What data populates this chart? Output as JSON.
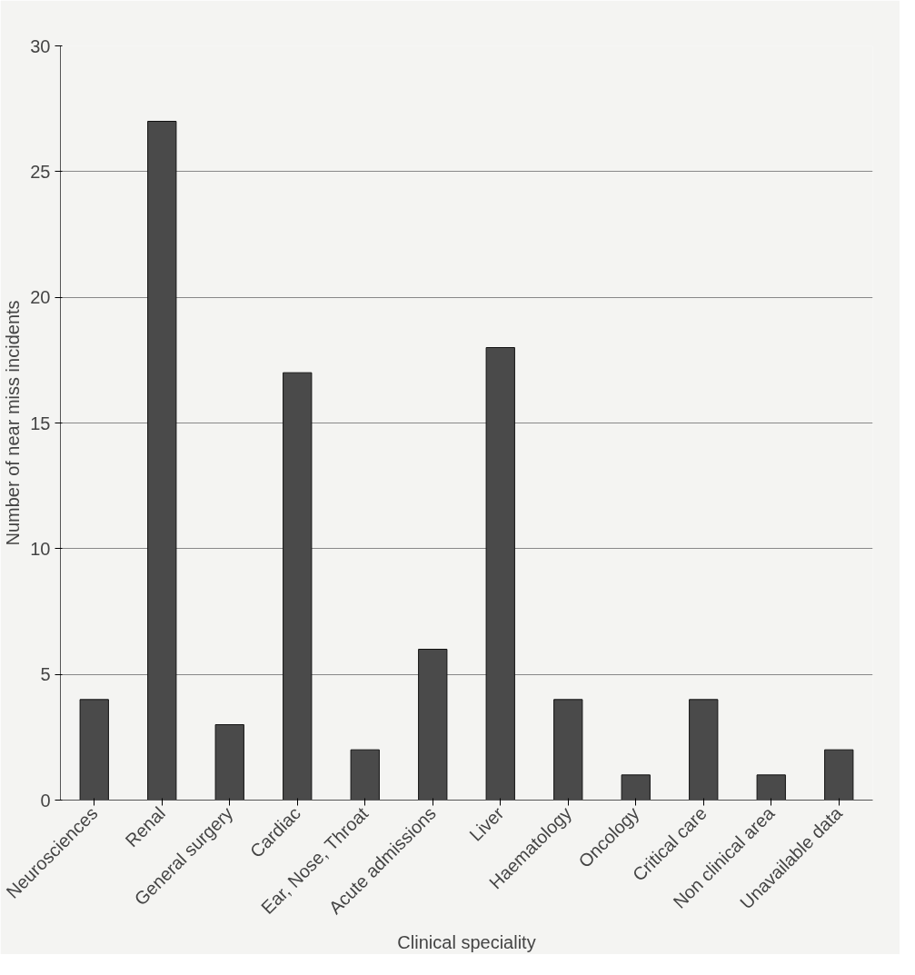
{
  "chart_data": {
    "type": "bar",
    "xlabel": "Clinical speciality",
    "ylabel": "Number of near miss incidents",
    "categories": [
      "Neurosciences",
      "Renal",
      "General surgery",
      "Cardiac",
      "Ear, Nose, Throat",
      "Acute admissions",
      "Liver",
      "Haematology",
      "Oncology",
      "Critical care",
      "Non clinical area",
      "Unavailable data"
    ],
    "values": [
      4,
      27,
      3,
      17,
      2,
      6,
      18,
      4,
      1,
      4,
      1,
      2
    ],
    "color": "#4a4a4a",
    "ylim": [
      0,
      30
    ],
    "yticks": [
      0,
      5,
      10,
      15,
      20,
      25,
      30
    ],
    "grid": "y"
  }
}
